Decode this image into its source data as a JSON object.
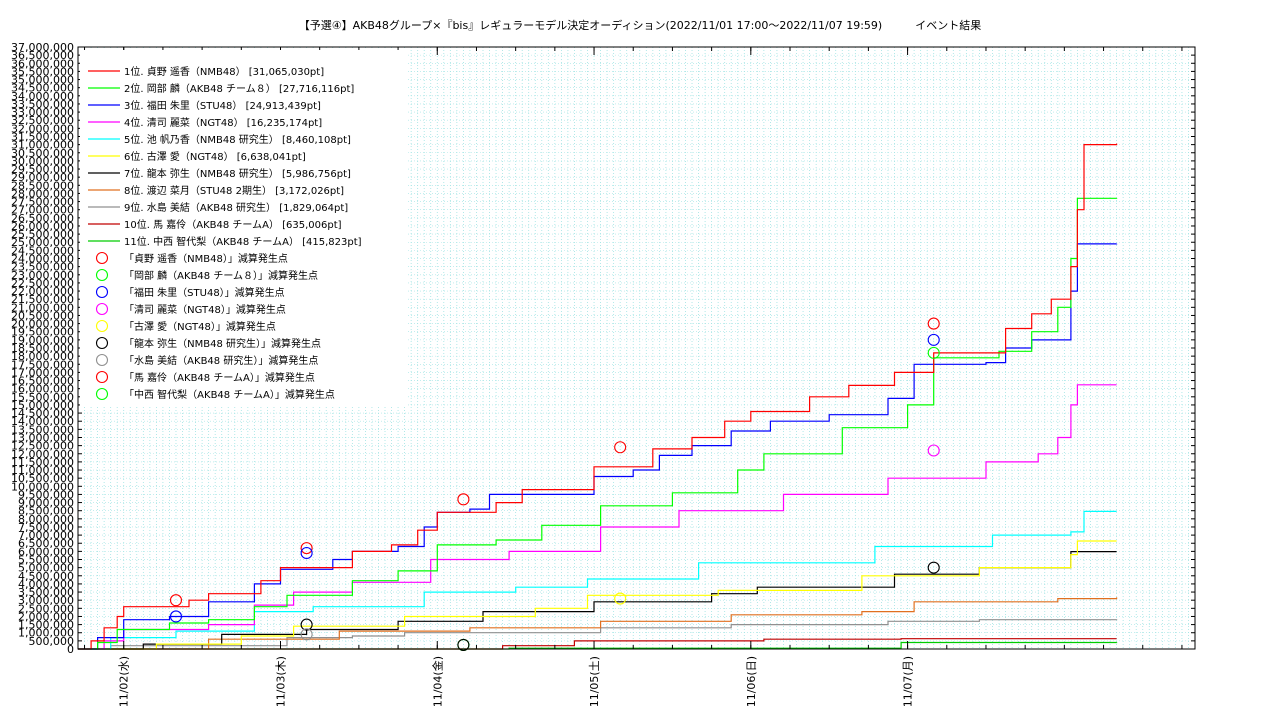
{
  "chart_data": {
    "type": "line",
    "title": "【予選④】AKB48グループ×『bis』レギュラーモデル決定オーディション(2022/11/01 17:00〜2022/11/07 19:59)　　　イベント結果",
    "xlabel": "",
    "ylabel": "",
    "x_unit": "hours since 2022/11/01 17:00",
    "xlim": [
      0,
      171
    ],
    "ylim": [
      0,
      37000000
    ],
    "y_tick_step": 500000,
    "y_tick_labels": [
      "0",
      "500,000",
      "1,000,000",
      "1,500,000",
      "2,000,000",
      "2,500,000",
      "3,000,000",
      "3,500,000",
      "4,000,000",
      "4,500,000",
      "5,000,000",
      "5,500,000",
      "6,000,000",
      "6,500,000",
      "7,000,000",
      "7,500,000",
      "8,000,000",
      "8,500,000",
      "9,000,000",
      "9,500,000",
      "10,000,000",
      "10,500,000",
      "11,000,000",
      "11,500,000",
      "12,000,000",
      "12,500,000",
      "13,000,000",
      "13,500,000",
      "14,000,000",
      "14,500,000",
      "15,000,000",
      "15,500,000",
      "16,000,000",
      "16,500,000",
      "17,000,000",
      "17,500,000",
      "18,000,000",
      "18,500,000",
      "19,000,000",
      "19,500,000",
      "20,000,000",
      "20,500,000",
      "21,000,000",
      "21,500,000",
      "22,000,000",
      "22,500,000",
      "23,000,000",
      "23,500,000",
      "24,000,000",
      "24,500,000",
      "25,000,000",
      "25,500,000",
      "26,000,000",
      "26,500,000",
      "27,000,000",
      "27,500,000",
      "28,000,000",
      "28,500,000",
      "29,000,000",
      "29,500,000",
      "30,000,000",
      "30,500,000",
      "31,000,000",
      "31,500,000",
      "32,000,000",
      "32,500,000",
      "33,000,000",
      "33,500,000",
      "34,000,000",
      "34,500,000",
      "35,000,000",
      "35,500,000",
      "36,000,000",
      "36,500,000",
      "37,000,000"
    ],
    "x_ticks": [
      {
        "x": 7,
        "label": "11/02(水)"
      },
      {
        "x": 31,
        "label": "11/03(木)"
      },
      {
        "x": 55,
        "label": "11/04(金)"
      },
      {
        "x": 79,
        "label": "11/05(土)"
      },
      {
        "x": 103,
        "label": "11/06(日)"
      },
      {
        "x": 127,
        "label": "11/07(月)"
      }
    ],
    "grid": true,
    "legend": "top-left",
    "series": [
      {
        "name": "1位. 貞野 遥香（NMB48） [31,065,030pt]",
        "color": "#ff0000",
        "points": [
          [
            0,
            0
          ],
          [
            2,
            500000
          ],
          [
            4,
            1300000
          ],
          [
            6,
            2000000
          ],
          [
            7,
            2600000
          ],
          [
            14,
            2600000
          ],
          [
            17,
            3000000
          ],
          [
            20,
            3400000
          ],
          [
            25,
            3400000
          ],
          [
            28,
            4200000
          ],
          [
            31,
            5000000
          ],
          [
            39,
            5000000
          ],
          [
            42,
            6000000
          ],
          [
            48,
            6400000
          ],
          [
            52,
            7300000
          ],
          [
            55,
            8400000
          ],
          [
            60,
            8400000
          ],
          [
            64,
            9000000
          ],
          [
            68,
            9800000
          ],
          [
            76,
            9800000
          ],
          [
            79,
            11200000
          ],
          [
            85,
            11200000
          ],
          [
            88,
            12300000
          ],
          [
            94,
            13000000
          ],
          [
            99,
            14000000
          ],
          [
            103,
            14600000
          ],
          [
            112,
            15500000
          ],
          [
            118,
            16200000
          ],
          [
            125,
            17000000
          ],
          [
            131,
            18200000
          ],
          [
            138,
            18200000
          ],
          [
            142,
            19700000
          ],
          [
            146,
            20600000
          ],
          [
            149,
            21500000
          ],
          [
            152,
            23500000
          ],
          [
            153,
            27000000
          ],
          [
            154,
            31000000
          ],
          [
            159,
            31065030
          ]
        ]
      },
      {
        "name": "2位. 岡部 麟（AKB48 チーム８） [27,716,116pt]",
        "color": "#00ff00",
        "points": [
          [
            0,
            0
          ],
          [
            3,
            400000
          ],
          [
            6,
            1200000
          ],
          [
            14,
            1600000
          ],
          [
            20,
            1800000
          ],
          [
            27,
            2600000
          ],
          [
            32,
            3300000
          ],
          [
            42,
            4200000
          ],
          [
            49,
            4800000
          ],
          [
            55,
            6400000
          ],
          [
            64,
            6700000
          ],
          [
            71,
            7600000
          ],
          [
            80,
            8800000
          ],
          [
            91,
            9600000
          ],
          [
            101,
            11000000
          ],
          [
            105,
            12000000
          ],
          [
            117,
            13600000
          ],
          [
            127,
            15000000
          ],
          [
            131,
            17900000
          ],
          [
            138,
            17900000
          ],
          [
            141,
            18300000
          ],
          [
            146,
            19500000
          ],
          [
            150,
            21000000
          ],
          [
            152,
            24000000
          ],
          [
            153,
            27700000
          ],
          [
            159,
            27716116
          ]
        ]
      },
      {
        "name": "3位. 福田 朱里（STU48） [24,913,439pt]",
        "color": "#0000ff",
        "points": [
          [
            0,
            0
          ],
          [
            3,
            700000
          ],
          [
            7,
            1800000
          ],
          [
            14,
            2000000
          ],
          [
            20,
            2900000
          ],
          [
            27,
            4000000
          ],
          [
            31,
            4900000
          ],
          [
            39,
            5500000
          ],
          [
            42,
            6000000
          ],
          [
            49,
            6300000
          ],
          [
            53,
            7500000
          ],
          [
            55,
            8400000
          ],
          [
            60,
            8600000
          ],
          [
            63,
            9500000
          ],
          [
            79,
            10600000
          ],
          [
            85,
            11000000
          ],
          [
            89,
            11900000
          ],
          [
            94,
            12500000
          ],
          [
            100,
            13400000
          ],
          [
            106,
            14000000
          ],
          [
            115,
            14400000
          ],
          [
            124,
            15400000
          ],
          [
            128,
            17500000
          ],
          [
            139,
            17600000
          ],
          [
            142,
            18500000
          ],
          [
            146,
            19000000
          ],
          [
            151,
            19000000
          ],
          [
            152,
            22000000
          ],
          [
            153,
            24900000
          ],
          [
            159,
            24913439
          ]
        ]
      },
      {
        "name": "4位. 清司 麗菜（NGT48） [16,235,174pt]",
        "color": "#ff00ff",
        "points": [
          [
            0,
            0
          ],
          [
            4,
            500000
          ],
          [
            7,
            1200000
          ],
          [
            20,
            1500000
          ],
          [
            27,
            2700000
          ],
          [
            33,
            3500000
          ],
          [
            42,
            4100000
          ],
          [
            54,
            5500000
          ],
          [
            66,
            6000000
          ],
          [
            80,
            7500000
          ],
          [
            92,
            8500000
          ],
          [
            108,
            9500000
          ],
          [
            124,
            10500000
          ],
          [
            139,
            11500000
          ],
          [
            147,
            12000000
          ],
          [
            150,
            13000000
          ],
          [
            152,
            15000000
          ],
          [
            153,
            16235174
          ],
          [
            159,
            16235174
          ]
        ]
      },
      {
        "name": "5位. 池 帆乃香（NMB48 研究生） [8,460,108pt]",
        "color": "#00ffff",
        "points": [
          [
            0,
            0
          ],
          [
            5,
            700000
          ],
          [
            15,
            1100000
          ],
          [
            27,
            2300000
          ],
          [
            36,
            2600000
          ],
          [
            53,
            3500000
          ],
          [
            67,
            3800000
          ],
          [
            78,
            4300000
          ],
          [
            95,
            5300000
          ],
          [
            122,
            6300000
          ],
          [
            140,
            7000000
          ],
          [
            152,
            7200000
          ],
          [
            154,
            8460108
          ],
          [
            159,
            8460108
          ]
        ]
      },
      {
        "name": "6位. 古澤 愛（NGT48） [6,638,041pt]",
        "color": "#ffff00",
        "points": [
          [
            0,
            0
          ],
          [
            12,
            300000
          ],
          [
            25,
            800000
          ],
          [
            33,
            1400000
          ],
          [
            50,
            2000000
          ],
          [
            70,
            2500000
          ],
          [
            78,
            3300000
          ],
          [
            98,
            3600000
          ],
          [
            120,
            4500000
          ],
          [
            138,
            5000000
          ],
          [
            152,
            5800000
          ],
          [
            153,
            6638041
          ],
          [
            159,
            6638041
          ]
        ]
      },
      {
        "name": "7位. 龍本 弥生（NMB48 研究生） [5,986,756pt]",
        "color": "#000000",
        "points": [
          [
            0,
            0
          ],
          [
            10,
            300000
          ],
          [
            22,
            900000
          ],
          [
            35,
            1200000
          ],
          [
            49,
            1700000
          ],
          [
            62,
            2300000
          ],
          [
            79,
            2900000
          ],
          [
            97,
            3400000
          ],
          [
            104,
            3800000
          ],
          [
            125,
            4600000
          ],
          [
            138,
            5000000
          ],
          [
            151,
            5000000
          ],
          [
            152,
            5986756
          ],
          [
            159,
            5986756
          ]
        ]
      },
      {
        "name": "8位. 渡辺 菜月（STU48 2期生） [3,172,026pt]",
        "color": "#e07020",
        "points": [
          [
            0,
            0
          ],
          [
            20,
            600000
          ],
          [
            40,
            1100000
          ],
          [
            60,
            1300000
          ],
          [
            80,
            1700000
          ],
          [
            100,
            2100000
          ],
          [
            120,
            2300000
          ],
          [
            128,
            2900000
          ],
          [
            150,
            3100000
          ],
          [
            159,
            3172026
          ]
        ]
      },
      {
        "name": "9位. 水島 美結（AKB48 研究生） [1,829,064pt]",
        "color": "#909090",
        "points": [
          [
            0,
            0
          ],
          [
            5,
            200000
          ],
          [
            32,
            700000
          ],
          [
            42,
            800000
          ],
          [
            50,
            1000000
          ],
          [
            80,
            1300000
          ],
          [
            100,
            1500000
          ],
          [
            124,
            1700000
          ],
          [
            138,
            1800000
          ],
          [
            159,
            1829064
          ]
        ]
      },
      {
        "name": "10位. 馬 嘉伶（AKB48 チームA） [635,006pt]",
        "color": "#c00000",
        "points": [
          [
            0,
            0
          ],
          [
            65,
            200000
          ],
          [
            76,
            500000
          ],
          [
            105,
            600000
          ],
          [
            126,
            630000
          ],
          [
            159,
            635006
          ]
        ]
      },
      {
        "name": "11位. 中西 智代梨（AKB48 チームA） [415,823pt]",
        "color": "#00cc00",
        "points": [
          [
            0,
            0
          ],
          [
            66,
            50000
          ],
          [
            126,
            400000
          ],
          [
            159,
            415823
          ]
        ]
      }
    ],
    "marker_legend": [
      {
        "name": "「貞野 遥香（NMB48）」減算発生点",
        "color": "#ff0000"
      },
      {
        "name": "「岡部 麟（AKB48 チーム８）」減算発生点",
        "color": "#00ff00"
      },
      {
        "name": "「福田 朱里（STU48）」減算発生点",
        "color": "#0000ff"
      },
      {
        "name": "「清司 麗菜（NGT48）」減算発生点",
        "color": "#ff00ff"
      },
      {
        "name": "「古澤 愛（NGT48）」減算発生点",
        "color": "#ffff00"
      },
      {
        "name": "「龍本 弥生（NMB48 研究生）」減算発生点",
        "color": "#000000"
      },
      {
        "name": "「水島 美結（AKB48 研究生）」減算発生点",
        "color": "#909090"
      },
      {
        "name": "「馬 嘉伶（AKB48 チームA）」減算発生点",
        "color": "#ff0000"
      },
      {
        "name": "「中西 智代梨（AKB48 チームA）」減算発生点",
        "color": "#00ff00"
      }
    ],
    "markers": [
      {
        "x": 15,
        "y": 3000000,
        "color": "#ff0000"
      },
      {
        "x": 15,
        "y": 2000000,
        "color": "#0000ff"
      },
      {
        "x": 35,
        "y": 6200000,
        "color": "#ff0000"
      },
      {
        "x": 35,
        "y": 5900000,
        "color": "#0000ff"
      },
      {
        "x": 35,
        "y": 1500000,
        "color": "#000000"
      },
      {
        "x": 35,
        "y": 900000,
        "color": "#909090"
      },
      {
        "x": 59,
        "y": 9200000,
        "color": "#ff0000"
      },
      {
        "x": 59,
        "y": 250000,
        "color": "#00ff00"
      },
      {
        "x": 59,
        "y": 250000,
        "color": "#000000"
      },
      {
        "x": 83,
        "y": 12400000,
        "color": "#ff0000"
      },
      {
        "x": 83,
        "y": 3100000,
        "color": "#ffff00"
      },
      {
        "x": 131,
        "y": 20000000,
        "color": "#ff0000"
      },
      {
        "x": 131,
        "y": 19000000,
        "color": "#0000ff"
      },
      {
        "x": 131,
        "y": 18200000,
        "color": "#00ff00"
      },
      {
        "x": 131,
        "y": 12200000,
        "color": "#ff00ff"
      },
      {
        "x": 131,
        "y": 5000000,
        "color": "#000000"
      }
    ]
  }
}
